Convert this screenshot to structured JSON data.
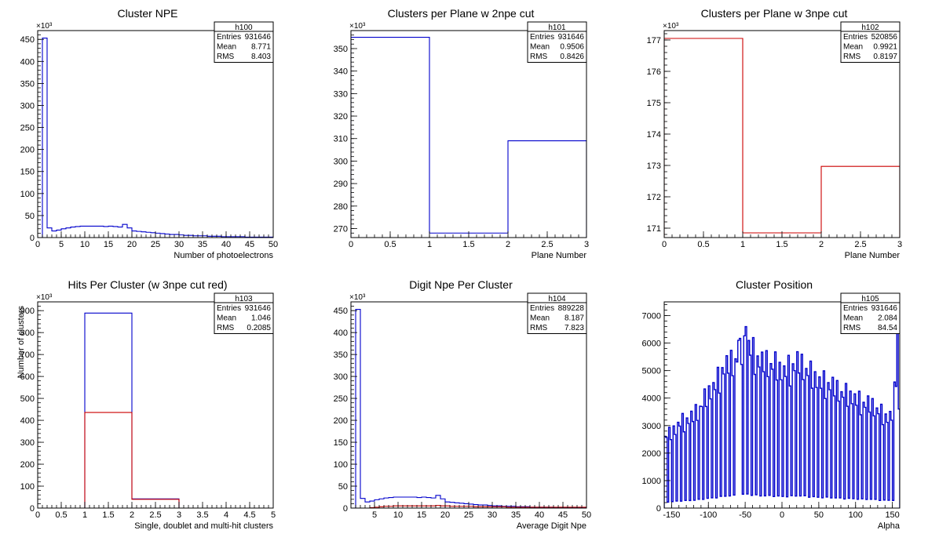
{
  "chart_data": [
    {
      "id": "h100",
      "type": "histogram",
      "title": "Cluster NPE",
      "xlabel": "Number of photoelectrons",
      "ylabel": "",
      "exponent_label": "×10³",
      "xlim": [
        0,
        50
      ],
      "ylim": [
        0,
        470
      ],
      "x_ticks": [
        0,
        5,
        10,
        15,
        20,
        25,
        30,
        35,
        40,
        45,
        50
      ],
      "y_ticks": [
        0,
        50,
        100,
        150,
        200,
        250,
        300,
        350,
        400,
        450
      ],
      "stats": {
        "name": "h100",
        "rows": [
          [
            "Entries",
            "931646"
          ],
          [
            "Mean",
            "8.771"
          ],
          [
            "RMS",
            "8.403"
          ]
        ]
      },
      "series": [
        {
          "color": "#0000cc",
          "bin_edges": [
            1,
            2,
            3,
            4,
            5,
            6,
            7,
            8,
            9,
            10,
            11,
            12,
            13,
            14,
            15,
            16,
            17,
            18,
            19,
            20,
            21,
            22,
            23,
            24,
            25,
            26,
            27,
            28,
            29,
            30,
            31,
            32,
            33,
            34,
            35,
            36,
            37,
            38,
            39,
            40,
            41,
            42,
            43,
            44,
            45,
            46,
            47,
            48,
            49,
            50
          ],
          "values": [
            453,
            22,
            15,
            17,
            20,
            22,
            24,
            25,
            26,
            26,
            26,
            26,
            26,
            25,
            26,
            25,
            24,
            30,
            22,
            15,
            14,
            13,
            12,
            11,
            10,
            9,
            8,
            7,
            7,
            6,
            5,
            5,
            4,
            4,
            4,
            3,
            3,
            3,
            2,
            2,
            2,
            2,
            2,
            1,
            1,
            1,
            1,
            1,
            1
          ]
        }
      ]
    },
    {
      "id": "h101",
      "type": "histogram",
      "title": "Clusters per Plane w 2npe cut",
      "xlabel": "Plane Number",
      "ylabel": "",
      "exponent_label": "×10³",
      "xlim": [
        0,
        3
      ],
      "ylim": [
        266,
        358
      ],
      "x_ticks": [
        0,
        0.5,
        1,
        1.5,
        2,
        2.5,
        3
      ],
      "y_ticks": [
        270,
        280,
        290,
        300,
        310,
        320,
        330,
        340,
        350
      ],
      "stats": {
        "name": "h101",
        "rows": [
          [
            "Entries",
            "931646"
          ],
          [
            "Mean",
            "0.9506"
          ],
          [
            "RMS",
            "0.8426"
          ]
        ]
      },
      "series": [
        {
          "color": "#0000cc",
          "bin_edges": [
            0,
            1,
            2,
            3
          ],
          "values": [
            355,
            268,
            309
          ]
        }
      ]
    },
    {
      "id": "h102",
      "type": "histogram",
      "title": "Clusters per Plane w 3npe cut",
      "xlabel": "Plane Number",
      "ylabel": "",
      "exponent_label": "×10³",
      "xlim": [
        0,
        3
      ],
      "ylim": [
        170.7,
        177.3
      ],
      "x_ticks": [
        0,
        0.5,
        1,
        1.5,
        2,
        2.5,
        3
      ],
      "y_ticks": [
        171,
        172,
        173,
        174,
        175,
        176,
        177
      ],
      "stats": {
        "name": "h102",
        "rows": [
          [
            "Entries",
            "520856"
          ],
          [
            "Mean",
            "0.9921"
          ],
          [
            "RMS",
            "0.8197"
          ]
        ]
      },
      "series": [
        {
          "color": "#cc0000",
          "bin_edges": [
            0,
            1,
            2,
            3
          ],
          "values": [
            177.05,
            170.85,
            172.97
          ]
        }
      ]
    },
    {
      "id": "h103",
      "type": "histogram",
      "title": "Hits Per Cluster (w 3npe cut red)",
      "xlabel": "Single, doublet and multi-hit clusters",
      "ylabel": "Number of clusters",
      "exponent_label": "×10³",
      "xlim": [
        0,
        5
      ],
      "ylim": [
        0,
        940
      ],
      "x_ticks": [
        0,
        0.5,
        1,
        1.5,
        2,
        2.5,
        3,
        3.5,
        4,
        4.5,
        5
      ],
      "y_ticks": [
        0,
        100,
        200,
        300,
        400,
        500,
        600,
        700,
        800,
        900
      ],
      "stats": {
        "name": "h103",
        "rows": [
          [
            "Entries",
            "931646"
          ],
          [
            "Mean",
            "1.046"
          ],
          [
            "RMS",
            "0.2085"
          ]
        ]
      },
      "series": [
        {
          "color": "#0000cc",
          "bin_edges": [
            0,
            1,
            2,
            3,
            4,
            5
          ],
          "values": [
            0,
            889,
            42,
            0,
            0
          ]
        },
        {
          "color": "#cc0000",
          "bin_edges": [
            0,
            1,
            2,
            3,
            4,
            5
          ],
          "values": [
            0,
            436,
            40,
            0,
            0
          ]
        }
      ]
    },
    {
      "id": "h104",
      "type": "histogram",
      "title": "Digit Npe Per Cluster",
      "xlabel": "Average Digit Npe",
      "ylabel": "",
      "exponent_label": "×10³",
      "xlim": [
        0,
        50
      ],
      "ylim": [
        0,
        470
      ],
      "x_ticks": [
        5,
        10,
        15,
        20,
        25,
        30,
        35,
        40,
        45,
        50
      ],
      "y_ticks": [
        0,
        50,
        100,
        150,
        200,
        250,
        300,
        350,
        400,
        450
      ],
      "stats": {
        "name": "h104",
        "rows": [
          [
            "Entries",
            "889228"
          ],
          [
            "Mean",
            "8.187"
          ],
          [
            "RMS",
            "7.823"
          ]
        ]
      },
      "series": [
        {
          "color": "#0000cc",
          "bin_edges": [
            1,
            2,
            3,
            4,
            5,
            6,
            7,
            8,
            9,
            10,
            11,
            12,
            13,
            14,
            15,
            16,
            17,
            18,
            19,
            20,
            21,
            22,
            23,
            24,
            25,
            26,
            27,
            28,
            29,
            30,
            31,
            32,
            33,
            34,
            35,
            36,
            37,
            38,
            39,
            40,
            41,
            42,
            43,
            44,
            45,
            46,
            47,
            48,
            49,
            50
          ],
          "values": [
            453,
            22,
            14,
            16,
            19,
            21,
            23,
            24,
            25,
            25,
            25,
            25,
            25,
            24,
            25,
            24,
            23,
            29,
            21,
            14,
            13,
            12,
            11,
            10,
            9,
            8,
            7,
            7,
            6,
            5,
            5,
            4,
            4,
            4,
            3,
            3,
            3,
            2,
            2,
            2,
            2,
            2,
            1,
            1,
            1,
            1,
            1,
            1,
            1
          ]
        },
        {
          "color": "#cc0000",
          "bin_edges": [
            1,
            2,
            3,
            4,
            5,
            6,
            7,
            8,
            9,
            10,
            11,
            12,
            13,
            14,
            15,
            16,
            17,
            18,
            19,
            20,
            21,
            22,
            23,
            24,
            25,
            26,
            27,
            28,
            29,
            30,
            31,
            32,
            33,
            34,
            35,
            36,
            37,
            38,
            39,
            40,
            41,
            42,
            43,
            44,
            45,
            46,
            47,
            48,
            49,
            50
          ],
          "values": [
            0,
            0,
            0,
            1,
            2,
            3,
            4,
            4,
            5,
            5,
            5,
            5,
            5,
            5,
            5,
            5,
            5,
            6,
            5,
            5,
            4,
            4,
            4,
            4,
            4,
            3,
            3,
            3,
            3,
            3,
            3,
            3,
            2,
            2,
            2,
            2,
            2,
            2,
            2,
            2,
            2,
            2,
            2,
            2,
            2,
            2,
            2,
            2,
            2
          ]
        }
      ]
    },
    {
      "id": "h105",
      "type": "histogram",
      "title": "Cluster Position",
      "xlabel": "Alpha",
      "ylabel": "",
      "exponent_label": "",
      "xlim": [
        -160,
        160
      ],
      "ylim": [
        0,
        7500
      ],
      "x_ticks": [
        -150,
        -100,
        -50,
        0,
        50,
        100,
        150
      ],
      "y_ticks": [
        0,
        1000,
        2000,
        3000,
        4000,
        5000,
        6000,
        7000
      ],
      "stats": {
        "name": "h105",
        "rows": [
          [
            "Entries",
            "931646"
          ],
          [
            "Mean",
            "2.084"
          ],
          [
            "RMS",
            "84.54"
          ]
        ]
      },
      "series": [
        {
          "color": "#0000cc",
          "generator": "comb",
          "bin_width": 2,
          "peaks": [
            [
              -160,
              2900
            ],
            [
              -150,
              3000
            ],
            [
              -140,
              3400
            ],
            [
              -130,
              3500
            ],
            [
              -120,
              3700
            ],
            [
              -110,
              4200
            ],
            [
              -100,
              4600
            ],
            [
              -90,
              5000
            ],
            [
              -80,
              5600
            ],
            [
              -70,
              5800
            ],
            [
              -60,
              6100
            ],
            [
              -50,
              6600
            ],
            [
              -40,
              6200
            ],
            [
              -30,
              5800
            ],
            [
              -20,
              5800
            ],
            [
              -10,
              5700
            ],
            [
              0,
              5400
            ],
            [
              10,
              5600
            ],
            [
              20,
              5800
            ],
            [
              30,
              5600
            ],
            [
              40,
              5300
            ],
            [
              50,
              5000
            ],
            [
              60,
              5000
            ],
            [
              70,
              4800
            ],
            [
              80,
              4600
            ],
            [
              90,
              4500
            ],
            [
              100,
              4300
            ],
            [
              110,
              4200
            ],
            [
              120,
              4100
            ],
            [
              130,
              3900
            ],
            [
              140,
              3600
            ],
            [
              150,
              3700
            ],
            [
              156,
              6400
            ],
            [
              160,
              1500
            ]
          ],
          "troughs_fraction": 0.08
        }
      ]
    }
  ]
}
